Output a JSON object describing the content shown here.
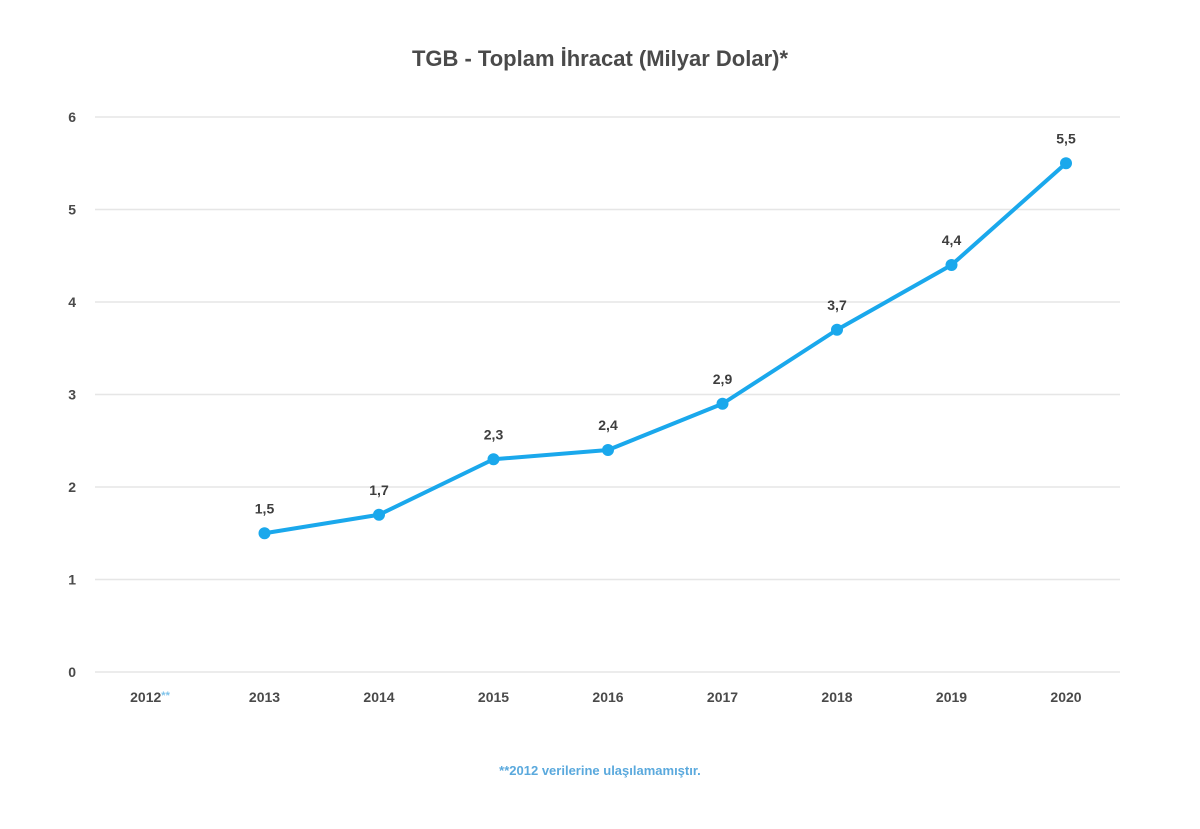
{
  "chart_data": {
    "type": "line",
    "title": "TGB - Toplam İhracat (Milyar Dolar)*",
    "xlabel": "",
    "ylabel": "",
    "categories": [
      {
        "year": "2012",
        "suffix": "**"
      },
      {
        "year": "2013",
        "suffix": ""
      },
      {
        "year": "2014",
        "suffix": ""
      },
      {
        "year": "2015",
        "suffix": ""
      },
      {
        "year": "2016",
        "suffix": ""
      },
      {
        "year": "2017",
        "suffix": ""
      },
      {
        "year": "2018",
        "suffix": ""
      },
      {
        "year": "2019",
        "suffix": ""
      },
      {
        "year": "2020",
        "suffix": ""
      }
    ],
    "series": [
      {
        "name": "Toplam İhracat",
        "values": [
          null,
          1.5,
          1.7,
          2.3,
          2.4,
          2.9,
          3.7,
          4.4,
          5.5
        ],
        "labels": [
          "",
          "1,5",
          "1,7",
          "2,3",
          "2,4",
          "2,9",
          "3,7",
          "4,4",
          "5,5"
        ]
      }
    ],
    "ylim": [
      0,
      6
    ],
    "yticks": [
      0,
      1,
      2,
      3,
      4,
      5,
      6
    ],
    "grid": true,
    "legend": "none",
    "annotations": [
      {
        "text": "**2012 verilerine ulaşılamamıştır.",
        "position": "bottom-center"
      }
    ]
  },
  "colors": {
    "line": "#1aa8ec",
    "marker": "#1aa8ec",
    "footnote": "#5aa9dd",
    "suffix": "#7fc3ea"
  }
}
